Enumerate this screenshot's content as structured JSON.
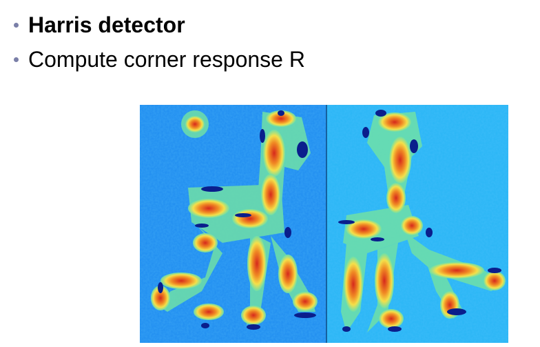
{
  "slide": {
    "bullets": [
      {
        "text": "Harris detector",
        "bold": true
      },
      {
        "text": "Compute corner response R",
        "bold": false
      }
    ]
  },
  "figure": {
    "description_icon": "harris-response-heatmap",
    "colors": {
      "background_left": "#1f8cf0",
      "background_right": "#29b6f6",
      "low": "#0a1e8c",
      "mid_green": "#6fe0a8",
      "mid_yellow": "#f4e04a",
      "high_orange": "#f08a24",
      "peak_red": "#d6281c"
    }
  }
}
